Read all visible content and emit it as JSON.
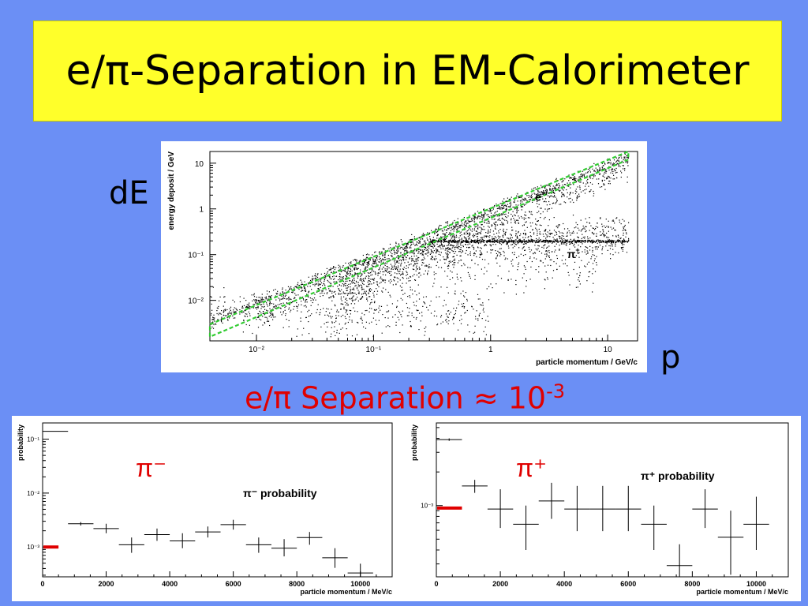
{
  "slide": {
    "title": "e/π-Separation in EM-Calorimeter",
    "dE_label": "dE",
    "p_label": "p",
    "separation_text": "e/π Separation ≈ 10",
    "separation_exp": "-3"
  },
  "colors": {
    "background": "#6b8ff5",
    "title_box": "#ffff2a",
    "highlight": "#e00000",
    "envelope": "#33cc33"
  },
  "chart_data": [
    {
      "type": "scatter",
      "xlabel": "particle momentum / GeV/c",
      "ylabel": "energy deposit / GeV",
      "xscale": "log",
      "yscale": "log",
      "xlim": [
        0.004,
        18
      ],
      "ylim": [
        0.0013,
        18
      ],
      "xticks": [
        "10⁻²",
        "10⁻¹",
        "1",
        "10"
      ],
      "xtick_values": [
        0.01,
        0.1,
        1,
        10
      ],
      "yticks": [
        "10⁻²",
        "10⁻¹",
        "1",
        "10"
      ],
      "ytick_values": [
        0.01,
        0.1,
        1,
        10
      ],
      "annotations": [
        {
          "text": "e",
          "sup": "+/-",
          "x": 2.4,
          "y": 1.5
        },
        {
          "text": "π",
          "sup": "+",
          "x": 4.5,
          "y": 0.085
        }
      ],
      "series": [
        {
          "name": "e+/-",
          "relation": "E = p",
          "x_range": [
            0.004,
            15
          ]
        },
        {
          "name": "π+",
          "relation": "E ≈ 0.2 GeV (MIP band)",
          "x_range": [
            0.3,
            15
          ]
        }
      ],
      "envelope": {
        "x": [
          0.004,
          15
        ],
        "y_upper": [
          0.003,
          18
        ],
        "y_lower": [
          0.0016,
          12
        ]
      }
    },
    {
      "type": "scatter",
      "title": "π⁻ probability",
      "highlight_label": "π⁻",
      "xlabel": "particle momentum / MeV/c",
      "ylabel": "probability",
      "yscale": "log",
      "xlim": [
        0,
        11000
      ],
      "ylim": [
        0.00028,
        0.2
      ],
      "xticks": [
        "0",
        "2000",
        "4000",
        "6000",
        "8000",
        "10000"
      ],
      "xtick_values": [
        0,
        2000,
        4000,
        6000,
        8000,
        10000
      ],
      "yticks": [
        "10⁻¹",
        "10⁻²",
        "10⁻³"
      ],
      "ytick_values": [
        0.1,
        0.01,
        0.001
      ],
      "marker": {
        "x_range": [
          0,
          500
        ],
        "y": 0.001
      },
      "points": [
        {
          "x": 400,
          "xerr": 400,
          "y": 0.14,
          "ylo": 0.14,
          "yhi": 0.14
        },
        {
          "x": 1200,
          "xerr": 400,
          "y": 0.0027,
          "ylo": 0.0025,
          "yhi": 0.0029
        },
        {
          "x": 2000,
          "xerr": 400,
          "y": 0.0022,
          "ylo": 0.0018,
          "yhi": 0.0027
        },
        {
          "x": 2800,
          "xerr": 400,
          "y": 0.0011,
          "ylo": 0.00078,
          "yhi": 0.0015
        },
        {
          "x": 3600,
          "xerr": 400,
          "y": 0.0017,
          "ylo": 0.0013,
          "yhi": 0.0022
        },
        {
          "x": 4400,
          "xerr": 400,
          "y": 0.0013,
          "ylo": 0.00095,
          "yhi": 0.0018
        },
        {
          "x": 5200,
          "xerr": 400,
          "y": 0.0019,
          "ylo": 0.0015,
          "yhi": 0.0024
        },
        {
          "x": 6000,
          "xerr": 400,
          "y": 0.0026,
          "ylo": 0.0021,
          "yhi": 0.0032
        },
        {
          "x": 6800,
          "xerr": 400,
          "y": 0.0011,
          "ylo": 0.00078,
          "yhi": 0.0015
        },
        {
          "x": 7600,
          "xerr": 400,
          "y": 0.00095,
          "ylo": 0.00067,
          "yhi": 0.0014
        },
        {
          "x": 8400,
          "xerr": 400,
          "y": 0.0015,
          "ylo": 0.0011,
          "yhi": 0.0019
        },
        {
          "x": 9200,
          "xerr": 400,
          "y": 0.00063,
          "ylo": 0.00041,
          "yhi": 0.00095
        },
        {
          "x": 10000,
          "xerr": 400,
          "y": 0.00033,
          "ylo": 0.00021,
          "yhi": 0.00049
        }
      ]
    },
    {
      "type": "scatter",
      "title": "π⁺ probability",
      "highlight_label": "π⁺",
      "xlabel": "particle momentum / MeV/c",
      "ylabel": "probability",
      "yscale": "log",
      "xlim": [
        0,
        11000
      ],
      "ylim": [
        0.00023,
        0.0055
      ],
      "xticks": [
        "0",
        "2000",
        "4000",
        "6000",
        "8000",
        "10000"
      ],
      "xtick_values": [
        0,
        2000,
        4000,
        6000,
        8000,
        10000
      ],
      "yticks": [
        "10⁻³"
      ],
      "ytick_values": [
        0.001
      ],
      "marker": {
        "x_range": [
          0,
          800
        ],
        "y": 0.00095
      },
      "points": [
        {
          "x": 400,
          "xerr": 400,
          "y": 0.0039,
          "ylo": 0.0038,
          "yhi": 0.004
        },
        {
          "x": 1200,
          "xerr": 400,
          "y": 0.0015,
          "ylo": 0.0013,
          "yhi": 0.0017
        },
        {
          "x": 2000,
          "xerr": 400,
          "y": 0.00093,
          "ylo": 0.00063,
          "yhi": 0.0014
        },
        {
          "x": 2800,
          "xerr": 400,
          "y": 0.00068,
          "ylo": 0.0004,
          "yhi": 0.001
        },
        {
          "x": 3600,
          "xerr": 400,
          "y": 0.0011,
          "ylo": 0.00076,
          "yhi": 0.0016
        },
        {
          "x": 4400,
          "xerr": 400,
          "y": 0.00093,
          "ylo": 0.00059,
          "yhi": 0.0015
        },
        {
          "x": 5200,
          "xerr": 400,
          "y": 0.00093,
          "ylo": 0.00059,
          "yhi": 0.0015
        },
        {
          "x": 6000,
          "xerr": 400,
          "y": 0.00093,
          "ylo": 0.00059,
          "yhi": 0.0015
        },
        {
          "x": 6800,
          "xerr": 400,
          "y": 0.00068,
          "ylo": 0.0004,
          "yhi": 0.001
        },
        {
          "x": 7600,
          "xerr": 400,
          "y": 0.00029,
          "ylo": 0.00019,
          "yhi": 0.00045
        },
        {
          "x": 8400,
          "xerr": 400,
          "y": 0.00093,
          "ylo": 0.00063,
          "yhi": 0.0014
        },
        {
          "x": 9200,
          "xerr": 400,
          "y": 0.00052,
          "ylo": 0.00024,
          "yhi": 0.0009
        },
        {
          "x": 10000,
          "xerr": 400,
          "y": 0.00068,
          "ylo": 0.0004,
          "yhi": 0.0012
        }
      ]
    }
  ]
}
